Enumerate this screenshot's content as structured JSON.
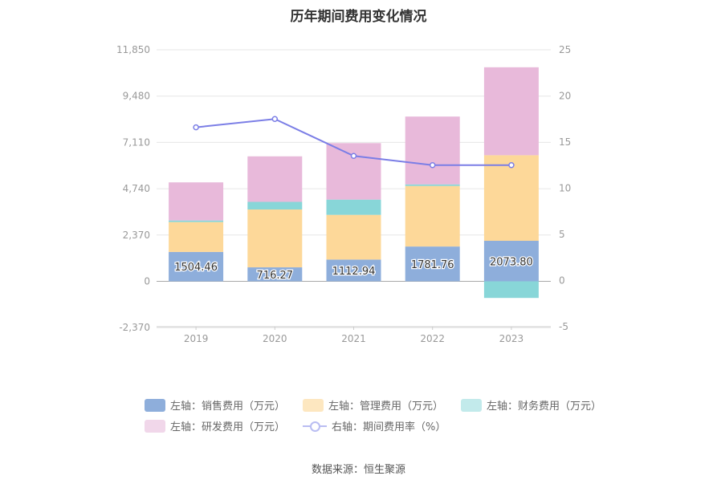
{
  "chart_data": {
    "type": "bar",
    "title": "历年期间费用变化情况",
    "categories": [
      "2019",
      "2020",
      "2021",
      "2022",
      "2023"
    ],
    "left_axis": {
      "min": -2370,
      "max": 11850,
      "ticks": [
        "11,850",
        "9,480",
        "7,110",
        "4,740",
        "2,370",
        "0",
        "-2,370"
      ]
    },
    "right_axis": {
      "min": -5,
      "max": 25,
      "ticks": [
        "25",
        "20",
        "15",
        "10",
        "5",
        "0",
        "-5"
      ]
    },
    "series": [
      {
        "name": "左轴：销售费用（万元）",
        "color": "#8eaedb",
        "values": [
          1504.46,
          716.27,
          1112.94,
          1781.76,
          2073.8
        ],
        "labels": [
          "1504.46",
          "716.27",
          "1112.94",
          "1781.76",
          "2073.80"
        ]
      },
      {
        "name": "左轴：管理费用（万元）",
        "color": "#fdd899",
        "values": [
          1530,
          2960,
          2290,
          3100,
          4380
        ]
      },
      {
        "name": "左轴：财务费用（万元）",
        "color": "#88d6d8",
        "values": [
          80,
          390,
          780,
          80,
          -850
        ]
      },
      {
        "name": "左轴：研发费用（万元）",
        "color": "#e8b9da",
        "values": [
          1950,
          2330,
          2890,
          3470,
          4500
        ]
      }
    ],
    "line_series": {
      "name": "右轴：期间费用率（%）",
      "color": "#7b7ee6",
      "values": [
        16.6,
        17.5,
        13.5,
        12.5,
        12.5
      ]
    }
  },
  "source": "数据来源：恒生聚源"
}
